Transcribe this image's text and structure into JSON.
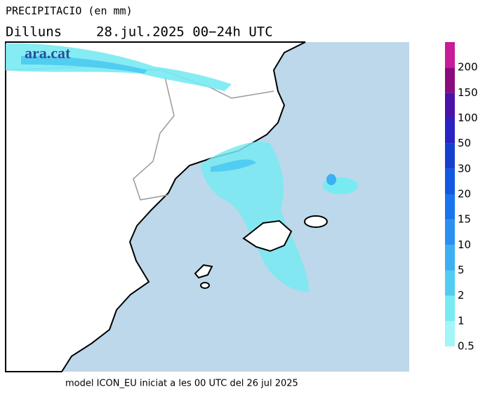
{
  "header": {
    "title": "PRECIPITACIO (en mm)",
    "day": "Dilluns",
    "period": "28.jul.2025 00−24h UTC"
  },
  "logo": "ara.cat",
  "footer": "model ICON_EU iniciat a les 00 UTC del 26 jul 2025",
  "legend": {
    "levels": [
      {
        "label": "0.5",
        "color": "#a2f6f8"
      },
      {
        "label": "1",
        "color": "#78eaf2"
      },
      {
        "label": "2",
        "color": "#52cdf2"
      },
      {
        "label": "5",
        "color": "#3cb0f2"
      },
      {
        "label": "10",
        "color": "#2a90f0"
      },
      {
        "label": "15",
        "color": "#1a74ee"
      },
      {
        "label": "20",
        "color": "#1258e2"
      },
      {
        "label": "30",
        "color": "#1640cc"
      },
      {
        "label": "50",
        "color": "#2a22c2"
      },
      {
        "label": "100",
        "color": "#4a12a8"
      },
      {
        "label": "150",
        "color": "#8a0c7c"
      },
      {
        "label": "200",
        "color": "#c81c98"
      }
    ]
  }
}
